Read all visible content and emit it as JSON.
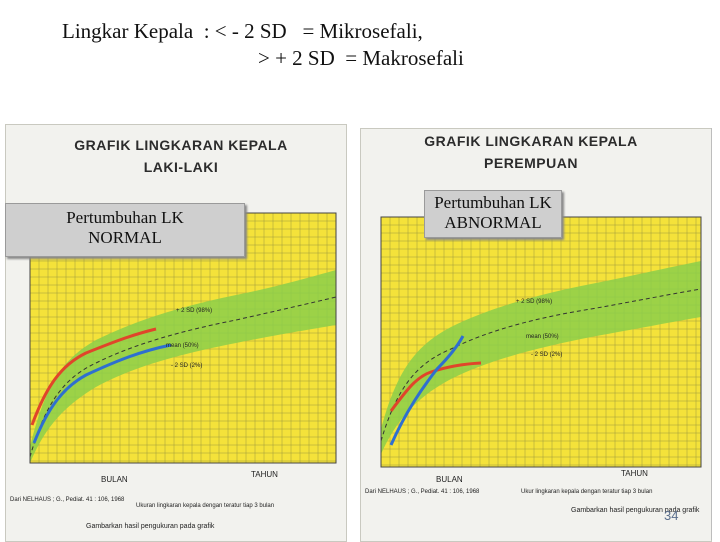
{
  "heading": {
    "line1": "Lingkar Kepala  : < - 2 SD   = Mikrosefali,",
    "line2": "> + 2 SD  = Makrosefali"
  },
  "boy_chart": {
    "title_line1": "GRAFIK  LINGKARAN  KEPALA",
    "title_line2": "LAKI-LAKI",
    "callout_line1": "Pertumbuhan LK",
    "callout_line2": "NORMAL",
    "label_upper": "+ 2 SD (98%)",
    "label_mean": "mean (50%)",
    "label_lower": "- 2 SD (2%)",
    "axis_bulan": "BULAN",
    "axis_tahun": "TAHUN",
    "footnote_source": "Dari NELHAUS ; G., Pediat. 41 : 106, 1968",
    "footnote_note": "Ukuran lingkaran kepala dengan teratur tiap 3 bulan",
    "footnote_plot": "Gambarkan hasil pengukuran pada grafik",
    "colors": {
      "chart_bg": "#f4e23a",
      "band": "#8ccf4a",
      "grid": "#6b6b3a",
      "measure_red": "#e0452a",
      "measure_blue": "#2e6fd0"
    }
  },
  "girl_chart": {
    "title_line1": "GRAFIK  LINGKARAN  KEPALA",
    "title_line2": "PEREMPUAN",
    "callout_line1": "Pertumbuhan LK",
    "callout_line2": "ABNORMAL",
    "label_upper": "+ 2 SD (98%)",
    "label_mean": "mean (50%)",
    "label_lower": "- 2 SD (2%)",
    "axis_bulan": "BULAN",
    "axis_tahun": "TAHUN",
    "footnote_source": "Dari NELHAUS ; G., Pediat. 41 : 106, 1968",
    "footnote_note": "Ukur lingkaran kepala dengan teratur tiap 3 bulan",
    "footnote_plot": "Gambarkan hasil pengukuran pada grafik"
  },
  "page_number": "34"
}
